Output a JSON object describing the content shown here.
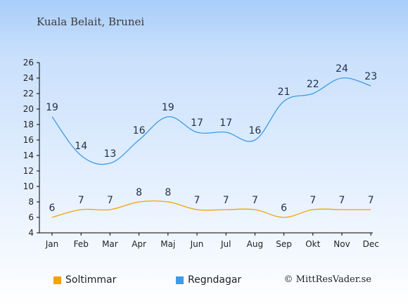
{
  "title": "Kuala Belait, Brunei",
  "legend": {
    "sun_label": "Soltimmar",
    "rain_label": "Regndagar"
  },
  "copyright": "© MittResVader.se",
  "colors": {
    "sun": "#f5a200",
    "rain": "#3d9be9"
  },
  "chart_data": {
    "type": "line",
    "categories": [
      "Jan",
      "Feb",
      "Mar",
      "Apr",
      "Maj",
      "Jun",
      "Jul",
      "Aug",
      "Sep",
      "Okt",
      "Nov",
      "Dec"
    ],
    "series": [
      {
        "name": "Soltimmar",
        "values": [
          6,
          7,
          7,
          8,
          8,
          7,
          7,
          7,
          6,
          7,
          7,
          7
        ]
      },
      {
        "name": "Regndagar",
        "values": [
          19,
          14,
          13,
          16,
          19,
          17,
          17,
          16,
          21,
          22,
          24,
          23
        ]
      }
    ],
    "yticks": [
      4,
      6,
      8,
      10,
      12,
      14,
      16,
      18,
      20,
      22,
      24,
      26
    ],
    "ylim": [
      4,
      26
    ],
    "grid": false,
    "legend_position": "bottom"
  }
}
